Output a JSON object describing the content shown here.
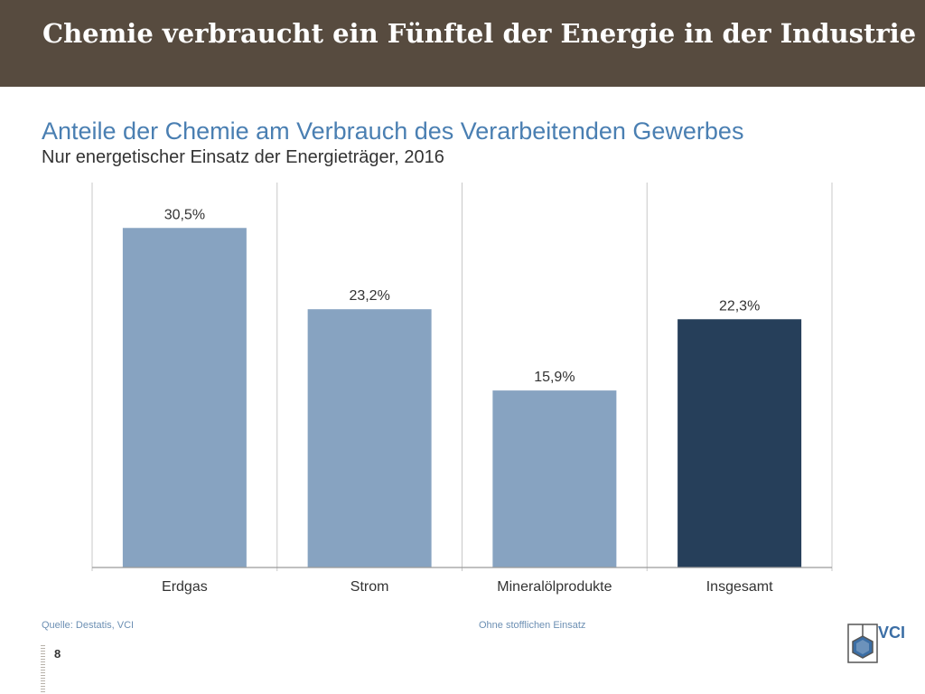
{
  "slide": {
    "title": "Chemie verbraucht ein Fünftel der Energie in der Industrie",
    "source": "Quelle: Destatis, VCI",
    "footnote": "Ohne stofflichen Einsatz",
    "page_number": "8",
    "logo_text": "VCI"
  },
  "colors": {
    "header_band": "#574b3f",
    "bar_default": "#87a3c1",
    "bar_highlight": "#263f5a",
    "title_blue": "#4a7fb2"
  },
  "chart_data": {
    "type": "bar",
    "title": "Anteile der Chemie am Verbrauch des Verarbeitenden Gewerbes",
    "subtitle": "Nur energetischer Einsatz der Energieträger, 2016",
    "categories": [
      "Erdgas",
      "Strom",
      "Mineralölprodukte",
      "Insgesamt"
    ],
    "values": [
      30.5,
      23.2,
      15.9,
      22.3
    ],
    "data_labels": [
      "30,5%",
      "23,2%",
      "15,9%",
      "22,3%"
    ],
    "highlight": [
      false,
      false,
      false,
      true
    ],
    "ylim": [
      0,
      35
    ],
    "grid": false,
    "legend": "none"
  }
}
